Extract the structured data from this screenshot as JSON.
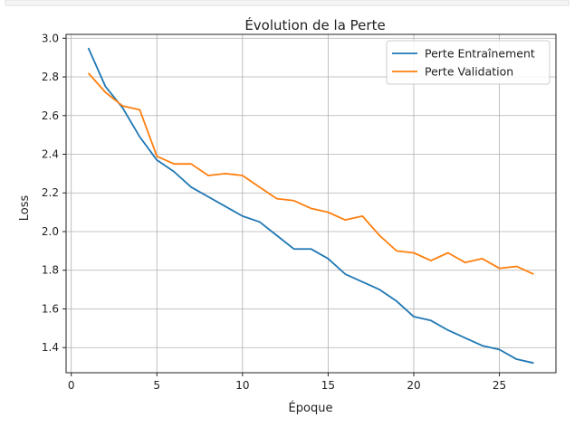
{
  "chart_data": {
    "type": "line",
    "title": "Évolution de la Perte",
    "xlabel": "Époque",
    "ylabel": "Loss",
    "xlim": [
      -0.3,
      28.3
    ],
    "ylim": [
      1.27,
      3.02
    ],
    "xticks": [
      0,
      5,
      10,
      15,
      20,
      25
    ],
    "yticks": [
      1.4,
      1.6,
      1.8,
      2.0,
      2.2,
      2.4,
      2.6,
      2.8,
      3.0
    ],
    "ytick_labels": [
      "1.4",
      "1.6",
      "1.8",
      "2.0",
      "2.2",
      "2.4",
      "2.6",
      "2.8",
      "3.0"
    ],
    "grid": true,
    "legend_position": "top-right",
    "x": [
      1,
      2,
      3,
      4,
      5,
      6,
      7,
      8,
      9,
      10,
      11,
      12,
      13,
      14,
      15,
      16,
      17,
      18,
      19,
      20,
      21,
      22,
      23,
      24,
      25,
      26,
      27
    ],
    "series": [
      {
        "name": "Perte Entraînement",
        "color": "#1f77b4",
        "values": [
          2.95,
          2.75,
          2.64,
          2.49,
          2.37,
          2.31,
          2.23,
          2.18,
          2.13,
          2.08,
          2.05,
          1.98,
          1.91,
          1.91,
          1.86,
          1.78,
          1.74,
          1.7,
          1.64,
          1.56,
          1.54,
          1.49,
          1.45,
          1.41,
          1.39,
          1.34,
          1.32
        ]
      },
      {
        "name": "Perte Validation",
        "color": "#ff7f0e",
        "values": [
          2.82,
          2.72,
          2.65,
          2.63,
          2.39,
          2.35,
          2.35,
          2.29,
          2.3,
          2.29,
          2.23,
          2.17,
          2.16,
          2.12,
          2.1,
          2.06,
          2.08,
          1.98,
          1.9,
          1.89,
          1.85,
          1.89,
          1.84,
          1.86,
          1.81,
          1.82,
          1.78
        ]
      }
    ]
  }
}
